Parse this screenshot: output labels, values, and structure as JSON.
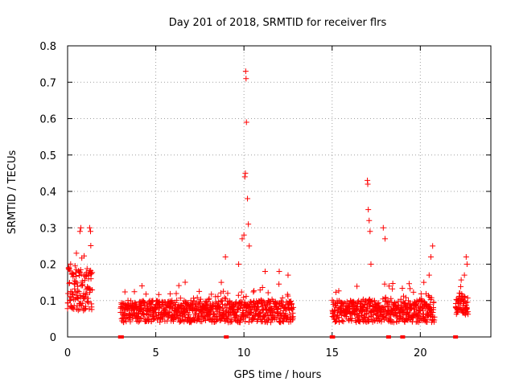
{
  "chart_data": {
    "type": "scatter",
    "title": "Day 201 of 2018, SRMTID for receiver flrs",
    "xlabel": "GPS time / hours",
    "ylabel": "SRMTID / TECUs",
    "xlim": [
      0,
      24
    ],
    "ylim": [
      0,
      0.8
    ],
    "x_ticks": [
      0,
      5,
      10,
      15,
      20
    ],
    "x_tick_labels": [
      "0",
      "5",
      "10",
      "15",
      "20"
    ],
    "y_ticks": [
      0,
      0.1,
      0.2,
      0.3,
      0.4,
      0.5,
      0.6,
      0.7,
      0.8
    ],
    "y_tick_labels": [
      "0",
      "0.1",
      "0.2",
      "0.3",
      "0.4",
      "0.5",
      "0.6",
      "0.7",
      "0.8"
    ],
    "grid": true,
    "marker": "plus",
    "colors": {
      "marker": "#ff0000",
      "grid": "#a0a0a0",
      "axes": "#000000"
    },
    "series": [
      {
        "name": "SRMTID",
        "segments": [
          {
            "start": 0.0,
            "end": 1.4,
            "base": 0.13,
            "spread": 0.06,
            "spikes": [
              [
                0.7,
                0.29
              ],
              [
                0.75,
                0.3
              ],
              [
                1.25,
                0.3
              ],
              [
                1.3,
                0.29
              ],
              [
                0.5,
                0.23
              ]
            ]
          },
          {
            "start": 3.0,
            "end": 12.8,
            "base": 0.07,
            "spread": 0.03,
            "spikes": [
              [
                8.95,
                0.22
              ],
              [
                9.7,
                0.2
              ],
              [
                9.9,
                0.27
              ],
              [
                10.0,
                0.28
              ],
              [
                10.05,
                0.44
              ],
              [
                10.08,
                0.45
              ],
              [
                10.1,
                0.73
              ],
              [
                10.12,
                0.71
              ],
              [
                10.14,
                0.59
              ],
              [
                10.2,
                0.38
              ],
              [
                10.25,
                0.31
              ],
              [
                10.3,
                0.25
              ],
              [
                11.2,
                0.18
              ],
              [
                12.0,
                0.18
              ],
              [
                12.5,
                0.17
              ]
            ]
          },
          {
            "start": 15.0,
            "end": 20.8,
            "base": 0.07,
            "spread": 0.03,
            "spikes": [
              [
                17.0,
                0.43
              ],
              [
                17.02,
                0.42
              ],
              [
                17.05,
                0.35
              ],
              [
                17.1,
                0.32
              ],
              [
                17.15,
                0.29
              ],
              [
                17.2,
                0.2
              ],
              [
                17.9,
                0.3
              ],
              [
                18.0,
                0.27
              ],
              [
                20.7,
                0.25
              ],
              [
                20.6,
                0.22
              ],
              [
                20.5,
                0.17
              ],
              [
                20.2,
                0.15
              ]
            ]
          },
          {
            "start": 22.0,
            "end": 22.7,
            "base": 0.09,
            "spread": 0.03,
            "spikes": [
              [
                22.6,
                0.22
              ],
              [
                22.65,
                0.2
              ],
              [
                22.5,
                0.17
              ]
            ]
          }
        ],
        "zero_points": [
          3.0,
          3.05,
          9.0,
          15.0,
          15.03,
          18.2,
          19.0,
          22.0
        ]
      }
    ]
  }
}
